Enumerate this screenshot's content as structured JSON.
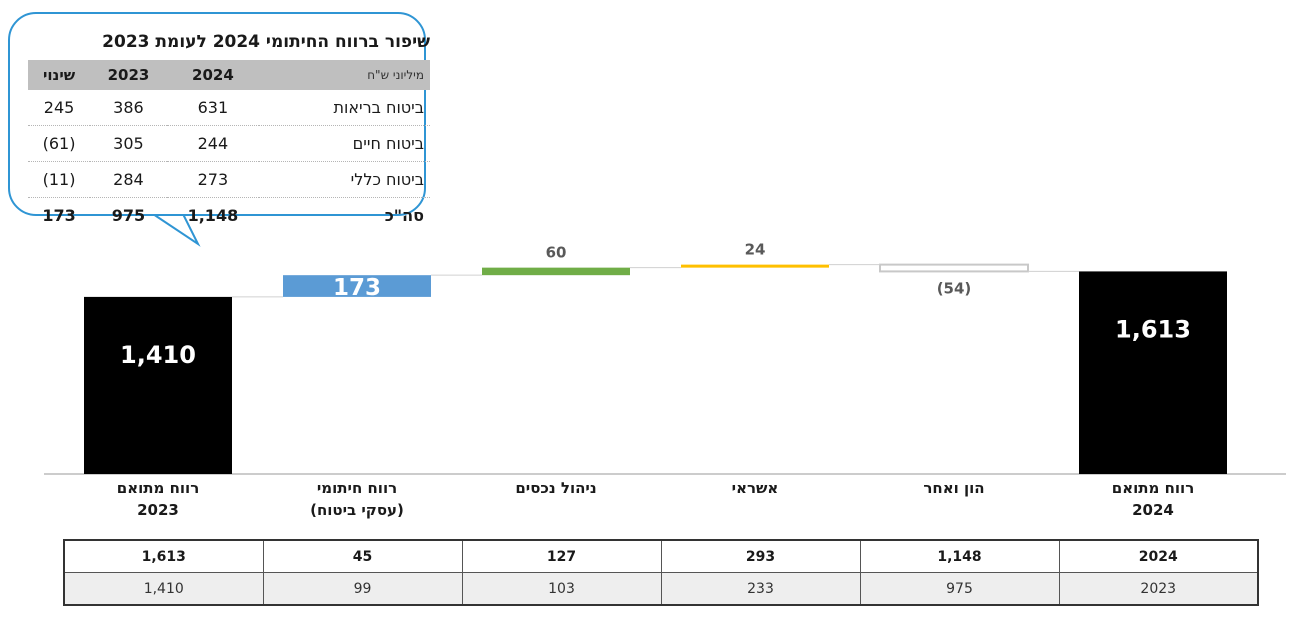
{
  "chart_data": {
    "type": "waterfall",
    "categories": [
      {
        "line1": "רווח מתואם",
        "line2": "2023"
      },
      {
        "line1": "רווח חיתומי",
        "line2": "(עסקי ביטוח)"
      },
      {
        "line1": "ניהול נכסים",
        "line2": ""
      },
      {
        "line1": "אשראי",
        "line2": ""
      },
      {
        "line1": "הון ואחר",
        "line2": ""
      },
      {
        "line1": "רווח מתואם",
        "line2": "2024"
      }
    ],
    "values": [
      1410,
      173,
      60,
      24,
      -54,
      1613
    ],
    "kinds": [
      "total",
      "delta",
      "delta",
      "delta",
      "delta",
      "total"
    ],
    "value_labels": [
      "1,410",
      "173",
      "60",
      "24",
      "(54)",
      "1,613"
    ],
    "colors": [
      "#000000",
      "#5b9bd5",
      "#70ad47",
      "#ffc000",
      "#ffffff",
      "#000000"
    ]
  },
  "callout": {
    "title": "שיפור ברווח החיתומי 2024 לעומת 2023",
    "unit": "מיליוני ש\"ח",
    "headers": [
      "2024",
      "2023",
      "שינוי"
    ],
    "rows": [
      {
        "label": "ביטוח בריאות",
        "v2024": "631",
        "v2023": "386",
        "change": "245"
      },
      {
        "label": "ביטוח חיים",
        "v2024": "244",
        "v2023": "305",
        "change": "(61)"
      },
      {
        "label": "ביטוח כללי",
        "v2024": "273",
        "v2023": "284",
        "change": "(11)"
      },
      {
        "label": "סה\"כ",
        "v2024": "1,148",
        "v2023": "975",
        "change": "173"
      }
    ]
  },
  "bottom_table": {
    "row2024": [
      "2024",
      "1,148",
      "293",
      "127",
      "45",
      "1,613"
    ],
    "row2023": [
      "2023",
      "975",
      "233",
      "103",
      "99",
      "1,410"
    ]
  }
}
